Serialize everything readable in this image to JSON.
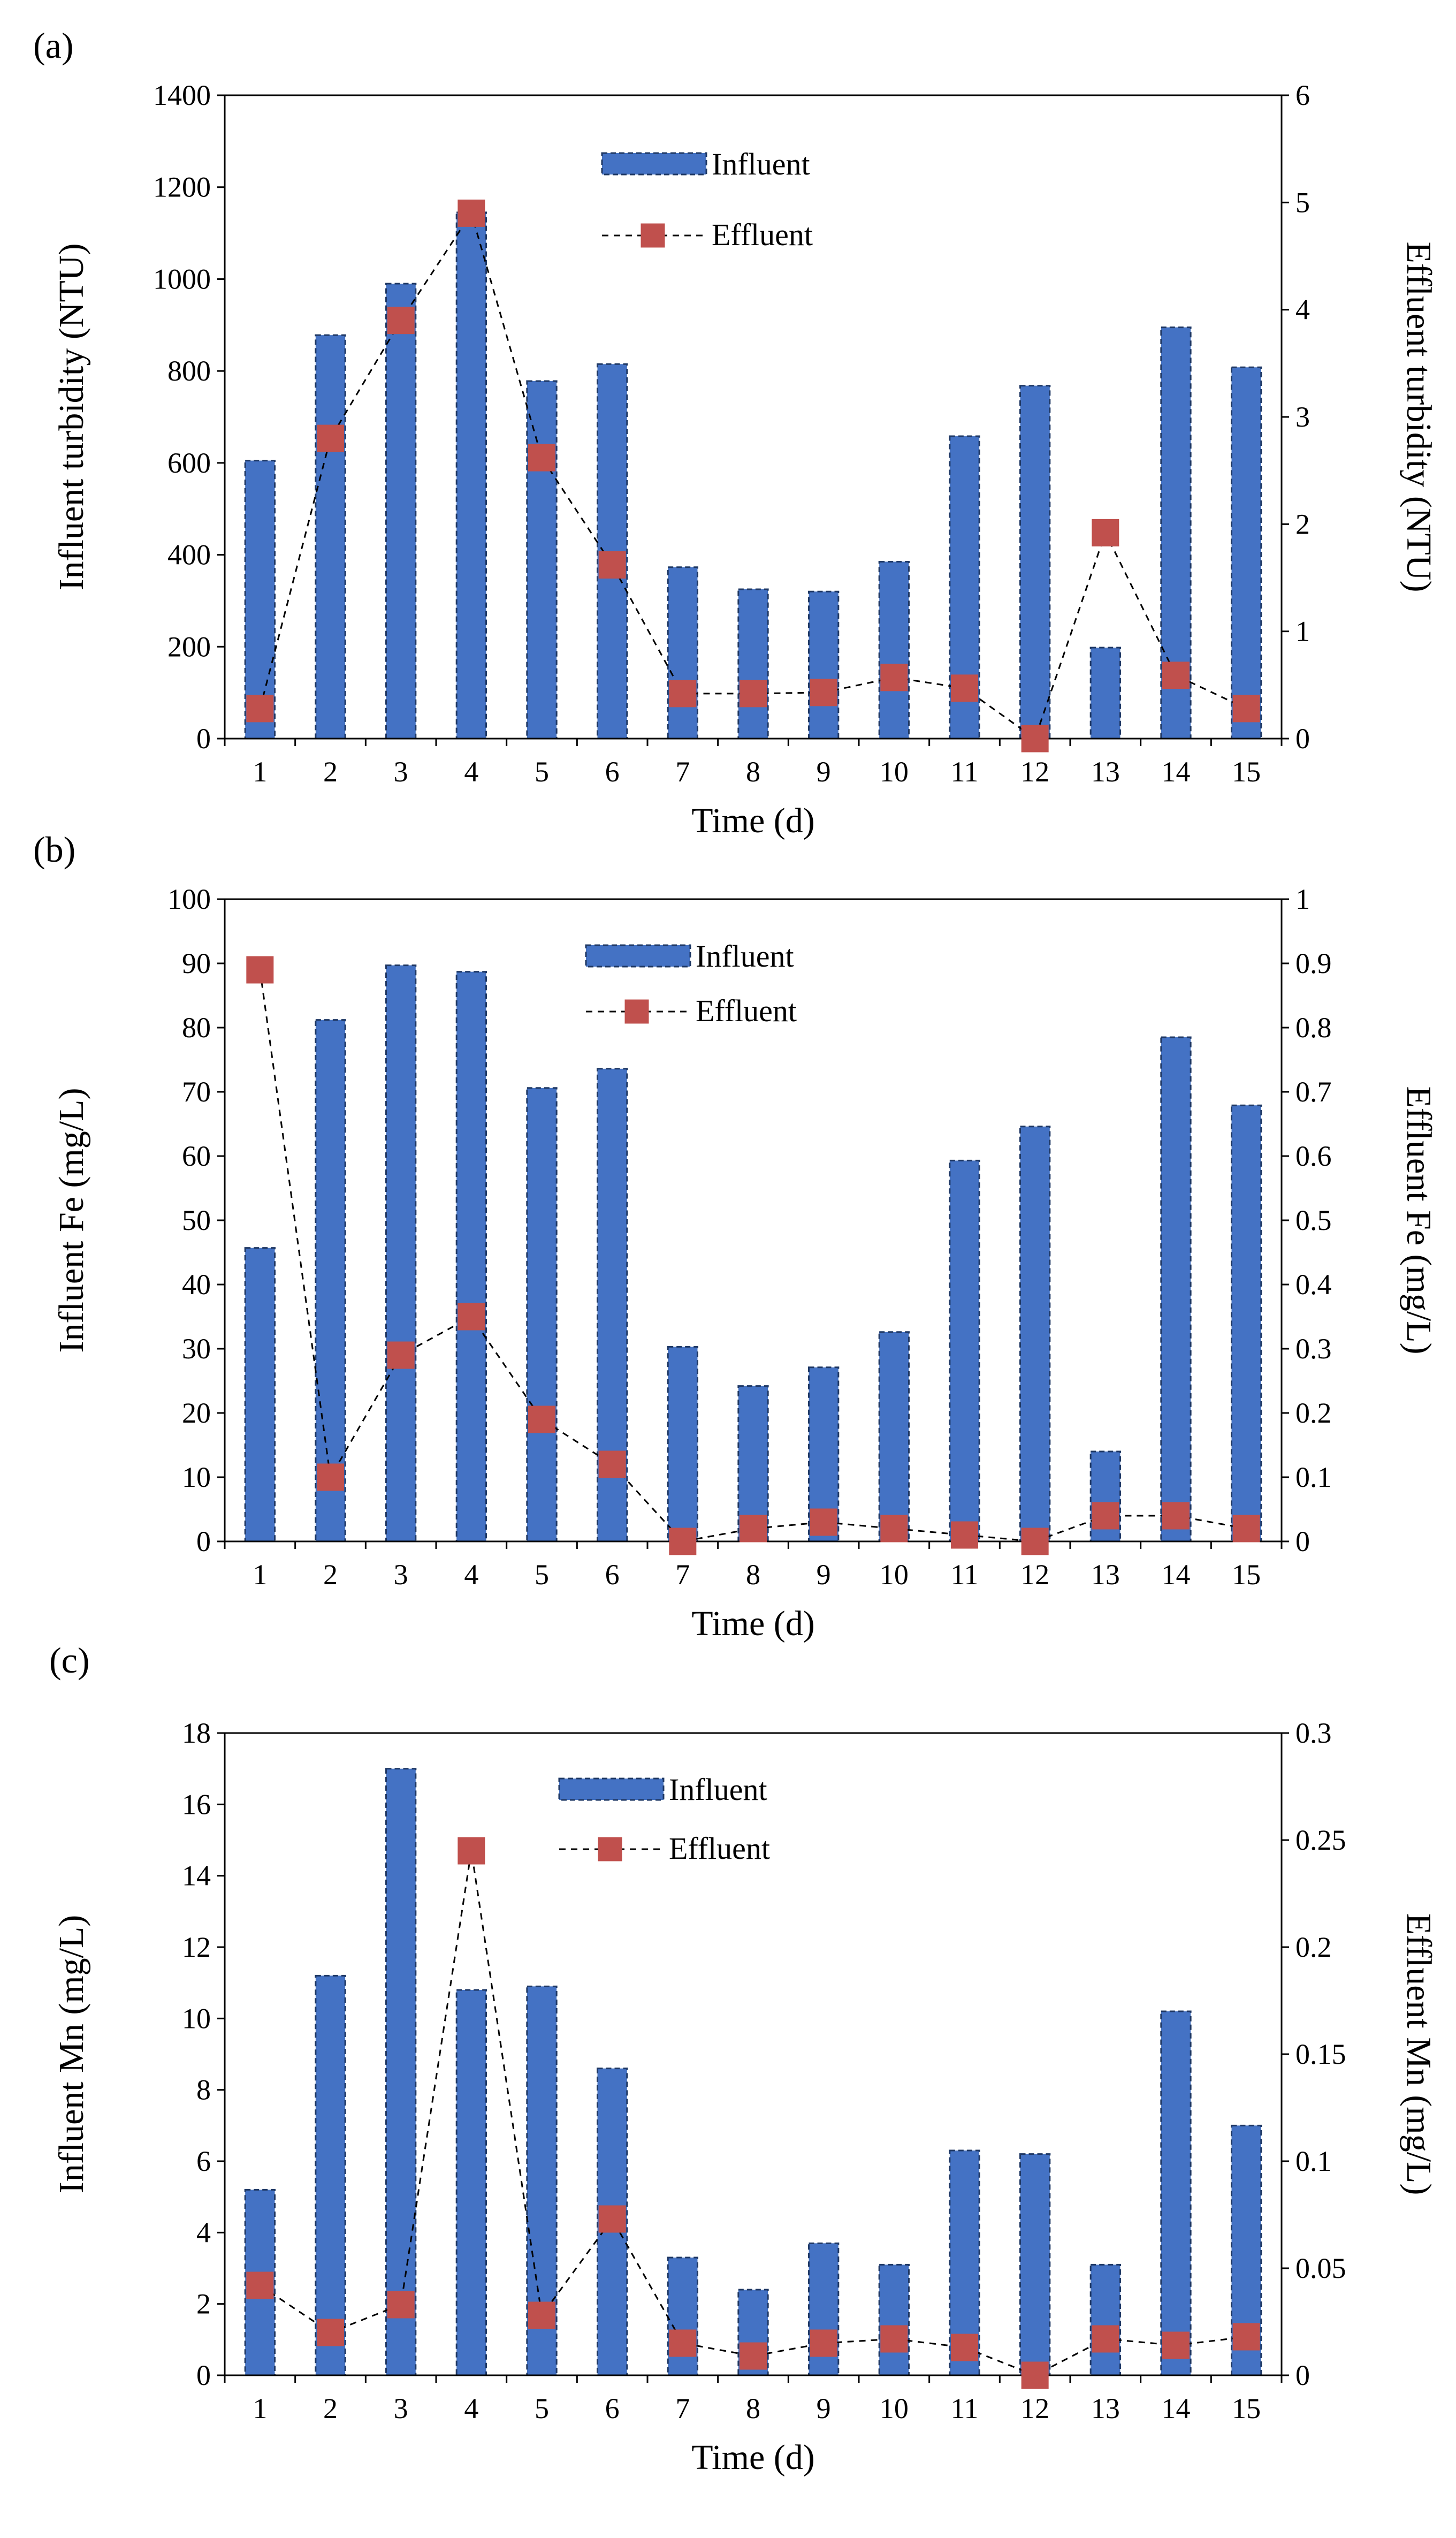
{
  "chart_data": [
    {
      "type": "bar",
      "panel": "(a)",
      "x": [
        1,
        2,
        3,
        4,
        5,
        6,
        7,
        8,
        9,
        10,
        11,
        12,
        13,
        14,
        15
      ],
      "xlabel": "Time (d)",
      "ylabel_left": "Influent turbidity (NTU)",
      "ylabel_right": "Effluent turbidity (NTU)",
      "ylim_left": [
        0,
        1400
      ],
      "ylim_right": [
        0,
        6
      ],
      "yticks_left": [
        0,
        200,
        400,
        600,
        800,
        1000,
        1200,
        1400
      ],
      "yticks_right": [
        0,
        1,
        2,
        3,
        4,
        5,
        6
      ],
      "legend_position": "top-center",
      "series": [
        {
          "name": "Influent",
          "type": "bar",
          "axis": "left",
          "values": [
            605,
            878,
            990,
            1145,
            778,
            815,
            373,
            325,
            320,
            385,
            658,
            768,
            198,
            895,
            808
          ]
        },
        {
          "name": "Effluent",
          "type": "line",
          "axis": "right",
          "values": [
            0.28,
            2.8,
            3.9,
            4.9,
            2.62,
            1.62,
            0.42,
            0.42,
            0.43,
            0.57,
            0.47,
            0.0,
            1.92,
            0.59,
            0.28
          ]
        }
      ]
    },
    {
      "type": "bar",
      "panel": "(b)",
      "x": [
        1,
        2,
        3,
        4,
        5,
        6,
        7,
        8,
        9,
        10,
        11,
        12,
        13,
        14,
        15
      ],
      "xlabel": "Time (d)",
      "ylabel_left": "Influent Fe (mg/L)",
      "ylabel_right": "Effluent Fe (mg/L)",
      "ylim_left": [
        0,
        100
      ],
      "ylim_right": [
        0,
        1
      ],
      "yticks_left": [
        0,
        10,
        20,
        30,
        40,
        50,
        60,
        70,
        80,
        90,
        100
      ],
      "yticks_right": [
        "0",
        "0.1",
        "0.2",
        "0.3",
        "0.4",
        "0.5",
        "0.6",
        "0.7",
        "0.8",
        "0.9",
        "1"
      ],
      "legend_position": "top-center",
      "series": [
        {
          "name": "Influent",
          "type": "bar",
          "axis": "left",
          "values": [
            45.7,
            81.2,
            89.7,
            88.7,
            70.6,
            73.6,
            30.3,
            24.2,
            27.1,
            32.6,
            59.3,
            64.6,
            14.0,
            78.5,
            67.9
          ]
        },
        {
          "name": "Effluent",
          "type": "line",
          "axis": "right",
          "values": [
            0.89,
            0.1,
            0.29,
            0.35,
            0.19,
            0.12,
            0.0,
            0.02,
            0.03,
            0.02,
            0.01,
            0.0,
            0.04,
            0.04,
            0.02
          ]
        }
      ]
    },
    {
      "type": "bar",
      "panel": "(c)",
      "x": [
        1,
        2,
        3,
        4,
        5,
        6,
        7,
        8,
        9,
        10,
        11,
        12,
        13,
        14,
        15
      ],
      "xlabel": "Time (d)",
      "ylabel_left": "Influent Mn (mg/L)",
      "ylabel_right": "Effluent Mn (mg/L)",
      "ylim_left": [
        0,
        18
      ],
      "ylim_right": [
        0,
        0.3
      ],
      "yticks_left": [
        0,
        2,
        4,
        6,
        8,
        10,
        12,
        14,
        16,
        18
      ],
      "yticks_right": [
        "0",
        "0.05",
        "0.1",
        "0.15",
        "0.2",
        "0.25",
        "0.3"
      ],
      "legend_position": "top-center",
      "series": [
        {
          "name": "Influent",
          "type": "bar",
          "axis": "left",
          "values": [
            5.2,
            11.2,
            17.0,
            10.8,
            10.9,
            8.6,
            3.3,
            2.4,
            3.7,
            3.1,
            6.3,
            6.2,
            3.1,
            10.2,
            7.0
          ]
        },
        {
          "name": "Effluent",
          "type": "line",
          "axis": "right",
          "values": [
            0.042,
            0.02,
            0.033,
            0.245,
            0.028,
            0.073,
            0.015,
            0.009,
            0.015,
            0.017,
            0.013,
            0.0,
            0.017,
            0.014,
            0.018
          ]
        }
      ]
    }
  ]
}
